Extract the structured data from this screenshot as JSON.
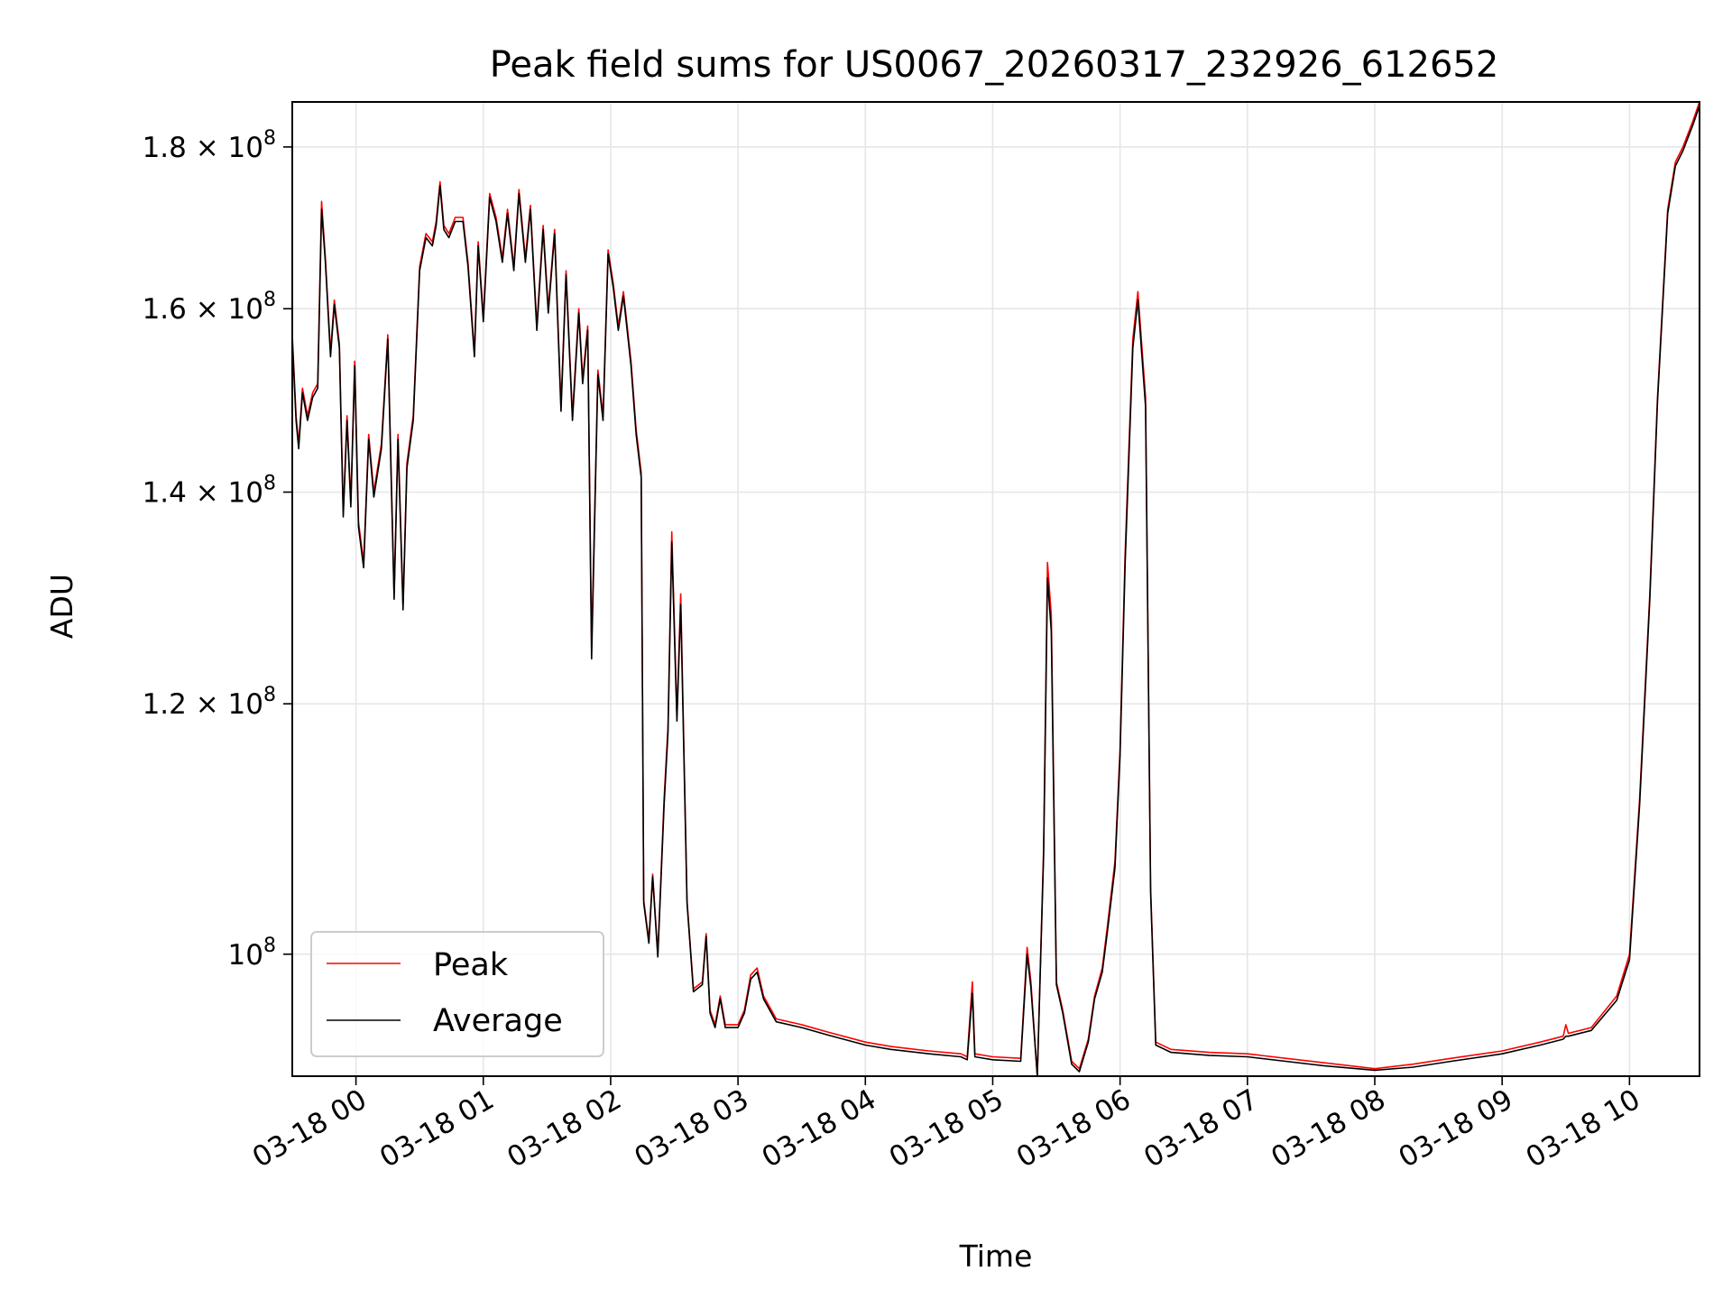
{
  "chart_data": {
    "type": "line",
    "title": "Peak field sums for US0067_20260317_232926_612652",
    "xlabel": "Time",
    "ylabel": "ADU",
    "x_unit": "hours since 2026-03-18 00:00",
    "xlim": [
      -0.5,
      10.55
    ],
    "ylim": [
      91500000,
      186000000
    ],
    "y_scale": "log",
    "grid": true,
    "legend_location": "lower-left",
    "colors": {
      "peak": "#ff0000",
      "average": "#000000",
      "grid": "#e6e6e6"
    },
    "x_ticks": [
      {
        "value": 0,
        "label": "03-18 00"
      },
      {
        "value": 1,
        "label": "03-18 01"
      },
      {
        "value": 2,
        "label": "03-18 02"
      },
      {
        "value": 3,
        "label": "03-18 03"
      },
      {
        "value": 4,
        "label": "03-18 04"
      },
      {
        "value": 5,
        "label": "03-18 05"
      },
      {
        "value": 6,
        "label": "03-18 06"
      },
      {
        "value": 7,
        "label": "03-18 07"
      },
      {
        "value": 8,
        "label": "03-18 08"
      },
      {
        "value": 9,
        "label": "03-18 09"
      },
      {
        "value": 10,
        "label": "03-18 10"
      }
    ],
    "y_ticks": [
      {
        "value": 100000000,
        "base": "10",
        "exp": "8"
      },
      {
        "value": 120000000,
        "base": "1.2 × 10",
        "exp": "8"
      },
      {
        "value": 140000000,
        "base": "1.4 × 10",
        "exp": "8"
      },
      {
        "value": 160000000,
        "base": "1.6 × 10",
        "exp": "8"
      },
      {
        "value": 180000000,
        "base": "1.8 × 10",
        "exp": "8"
      }
    ],
    "series": [
      {
        "name": "Peak",
        "key": "peak",
        "points": [
          [
            -0.5,
            157.0
          ],
          [
            -0.47,
            148.0
          ],
          [
            -0.45,
            145.0
          ],
          [
            -0.42,
            151.0
          ],
          [
            -0.38,
            148.0
          ],
          [
            -0.34,
            150.5
          ],
          [
            -0.3,
            151.5
          ],
          [
            -0.27,
            173.0
          ],
          [
            -0.24,
            166.0
          ],
          [
            -0.2,
            155.0
          ],
          [
            -0.17,
            161.0
          ],
          [
            -0.13,
            156.0
          ],
          [
            -0.1,
            138.0
          ],
          [
            -0.07,
            148.0
          ],
          [
            -0.04,
            139.0
          ],
          [
            -0.01,
            154.0
          ],
          [
            0.02,
            137.0
          ],
          [
            0.06,
            133.0
          ],
          [
            0.1,
            146.0
          ],
          [
            0.14,
            140.0
          ],
          [
            0.2,
            145.0
          ],
          [
            0.25,
            157.0
          ],
          [
            0.3,
            130.0
          ],
          [
            0.33,
            146.0
          ],
          [
            0.37,
            129.0
          ],
          [
            0.4,
            143.0
          ],
          [
            0.45,
            148.0
          ],
          [
            0.5,
            165.0
          ],
          [
            0.55,
            169.0
          ],
          [
            0.6,
            168.0
          ],
          [
            0.63,
            170.5
          ],
          [
            0.66,
            175.5
          ],
          [
            0.69,
            170.0
          ],
          [
            0.73,
            169.0
          ],
          [
            0.78,
            171.0
          ],
          [
            0.84,
            171.0
          ],
          [
            0.88,
            165.5
          ],
          [
            0.93,
            155.0
          ],
          [
            0.96,
            168.0
          ],
          [
            1.0,
            159.0
          ],
          [
            1.05,
            174.0
          ],
          [
            1.1,
            171.0
          ],
          [
            1.15,
            166.0
          ],
          [
            1.19,
            172.0
          ],
          [
            1.24,
            165.0
          ],
          [
            1.28,
            174.5
          ],
          [
            1.33,
            166.0
          ],
          [
            1.37,
            172.5
          ],
          [
            1.42,
            158.0
          ],
          [
            1.47,
            170.0
          ],
          [
            1.51,
            160.0
          ],
          [
            1.56,
            169.5
          ],
          [
            1.61,
            149.0
          ],
          [
            1.65,
            164.5
          ],
          [
            1.7,
            148.0
          ],
          [
            1.75,
            160.0
          ],
          [
            1.78,
            152.0
          ],
          [
            1.82,
            158.0
          ],
          [
            1.85,
            125.0
          ],
          [
            1.9,
            153.0
          ],
          [
            1.94,
            148.0
          ],
          [
            1.98,
            167.0
          ],
          [
            2.02,
            163.0
          ],
          [
            2.06,
            158.0
          ],
          [
            2.1,
            162.0
          ],
          [
            2.16,
            154.0
          ],
          [
            2.2,
            146.5
          ],
          [
            2.24,
            142.0
          ],
          [
            2.26,
            104.0
          ],
          [
            2.3,
            101.0
          ],
          [
            2.33,
            106.0
          ],
          [
            2.37,
            100.0
          ],
          [
            2.42,
            112.0
          ],
          [
            2.45,
            118.0
          ],
          [
            2.48,
            136.0
          ],
          [
            2.52,
            119.0
          ],
          [
            2.55,
            130.0
          ],
          [
            2.6,
            104.0
          ],
          [
            2.65,
            97.5
          ],
          [
            2.72,
            98.0
          ],
          [
            2.75,
            101.5
          ],
          [
            2.78,
            96.0
          ],
          [
            2.82,
            95.0
          ],
          [
            2.86,
            97.0
          ],
          [
            2.9,
            95.0
          ],
          [
            3.0,
            95.0
          ],
          [
            3.05,
            96.0
          ],
          [
            3.1,
            98.5
          ],
          [
            3.15,
            99.0
          ],
          [
            3.2,
            97.0
          ],
          [
            3.3,
            95.4
          ],
          [
            3.5,
            95.0
          ],
          [
            3.7,
            94.5
          ],
          [
            4.0,
            93.8
          ],
          [
            4.2,
            93.5
          ],
          [
            4.5,
            93.2
          ],
          [
            4.75,
            93.0
          ],
          [
            4.8,
            92.8
          ],
          [
            4.84,
            98.0
          ],
          [
            4.86,
            93.0
          ],
          [
            5.0,
            92.8
          ],
          [
            5.22,
            92.7
          ],
          [
            5.27,
            100.5
          ],
          [
            5.3,
            98.0
          ],
          [
            5.35,
            91.5
          ],
          [
            5.4,
            108.0
          ],
          [
            5.43,
            133.0
          ],
          [
            5.46,
            128.0
          ],
          [
            5.5,
            98.0
          ],
          [
            5.55,
            96.0
          ],
          [
            5.62,
            92.5
          ],
          [
            5.68,
            92.0
          ],
          [
            5.75,
            94.0
          ],
          [
            5.8,
            97.0
          ],
          [
            5.86,
            99.0
          ],
          [
            5.9,
            102.0
          ],
          [
            5.96,
            107.0
          ],
          [
            6.0,
            116.0
          ],
          [
            6.04,
            134.0
          ],
          [
            6.1,
            156.5
          ],
          [
            6.14,
            162.0
          ],
          [
            6.2,
            150.0
          ],
          [
            6.24,
            105.0
          ],
          [
            6.28,
            93.8
          ],
          [
            6.4,
            93.3
          ],
          [
            6.7,
            93.1
          ],
          [
            7.0,
            93.0
          ],
          [
            7.3,
            92.7
          ],
          [
            7.6,
            92.4
          ],
          [
            8.0,
            92.0
          ],
          [
            8.3,
            92.3
          ],
          [
            8.6,
            92.7
          ],
          [
            9.0,
            93.2
          ],
          [
            9.3,
            93.8
          ],
          [
            9.48,
            94.2
          ],
          [
            9.5,
            95.0
          ],
          [
            9.52,
            94.4
          ],
          [
            9.7,
            94.8
          ],
          [
            9.9,
            97.0
          ],
          [
            10.0,
            100.0
          ],
          [
            10.08,
            112.0
          ],
          [
            10.16,
            130.0
          ],
          [
            10.22,
            150.0
          ],
          [
            10.3,
            172.0
          ],
          [
            10.36,
            178.0
          ],
          [
            10.42,
            180.0
          ],
          [
            10.5,
            183.5
          ],
          [
            10.55,
            186.0
          ]
        ]
      },
      {
        "name": "Average",
        "key": "average",
        "points": [
          [
            -0.5,
            156.5
          ],
          [
            -0.47,
            147.5
          ],
          [
            -0.45,
            144.5
          ],
          [
            -0.42,
            150.5
          ],
          [
            -0.38,
            147.5
          ],
          [
            -0.34,
            150.0
          ],
          [
            -0.3,
            151.0
          ],
          [
            -0.27,
            172.0
          ],
          [
            -0.24,
            165.5
          ],
          [
            -0.2,
            154.5
          ],
          [
            -0.17,
            160.5
          ],
          [
            -0.13,
            155.5
          ],
          [
            -0.1,
            137.5
          ],
          [
            -0.07,
            147.5
          ],
          [
            -0.04,
            138.5
          ],
          [
            -0.01,
            153.5
          ],
          [
            0.02,
            136.5
          ],
          [
            0.06,
            132.5
          ],
          [
            0.1,
            145.5
          ],
          [
            0.14,
            139.5
          ],
          [
            0.2,
            144.5
          ],
          [
            0.25,
            156.5
          ],
          [
            0.3,
            129.5
          ],
          [
            0.33,
            145.5
          ],
          [
            0.37,
            128.5
          ],
          [
            0.4,
            142.5
          ],
          [
            0.45,
            147.5
          ],
          [
            0.5,
            164.5
          ],
          [
            0.55,
            168.5
          ],
          [
            0.6,
            167.5
          ],
          [
            0.63,
            170.0
          ],
          [
            0.66,
            175.0
          ],
          [
            0.69,
            169.5
          ],
          [
            0.73,
            168.5
          ],
          [
            0.78,
            170.5
          ],
          [
            0.84,
            170.5
          ],
          [
            0.88,
            165.0
          ],
          [
            0.93,
            154.5
          ],
          [
            0.96,
            167.5
          ],
          [
            1.0,
            158.5
          ],
          [
            1.05,
            173.5
          ],
          [
            1.1,
            170.5
          ],
          [
            1.15,
            165.5
          ],
          [
            1.19,
            171.5
          ],
          [
            1.24,
            164.5
          ],
          [
            1.28,
            174.0
          ],
          [
            1.33,
            165.5
          ],
          [
            1.37,
            172.0
          ],
          [
            1.42,
            157.5
          ],
          [
            1.47,
            169.5
          ],
          [
            1.51,
            159.5
          ],
          [
            1.56,
            169.0
          ],
          [
            1.61,
            148.5
          ],
          [
            1.65,
            164.0
          ],
          [
            1.7,
            147.5
          ],
          [
            1.75,
            159.5
          ],
          [
            1.78,
            151.5
          ],
          [
            1.82,
            157.5
          ],
          [
            1.85,
            124.0
          ],
          [
            1.9,
            152.5
          ],
          [
            1.94,
            147.5
          ],
          [
            1.98,
            166.5
          ],
          [
            2.02,
            162.5
          ],
          [
            2.06,
            157.5
          ],
          [
            2.1,
            161.5
          ],
          [
            2.16,
            153.5
          ],
          [
            2.2,
            146.0
          ],
          [
            2.24,
            141.5
          ],
          [
            2.26,
            103.8
          ],
          [
            2.3,
            100.8
          ],
          [
            2.33,
            105.8
          ],
          [
            2.37,
            99.8
          ],
          [
            2.42,
            111.5
          ],
          [
            2.45,
            117.5
          ],
          [
            2.48,
            135.0
          ],
          [
            2.52,
            118.5
          ],
          [
            2.55,
            129.0
          ],
          [
            2.6,
            103.8
          ],
          [
            2.65,
            97.3
          ],
          [
            2.72,
            97.8
          ],
          [
            2.75,
            101.3
          ],
          [
            2.78,
            95.8
          ],
          [
            2.82,
            94.8
          ],
          [
            2.86,
            96.8
          ],
          [
            2.9,
            94.8
          ],
          [
            3.0,
            94.8
          ],
          [
            3.05,
            95.8
          ],
          [
            3.1,
            98.2
          ],
          [
            3.15,
            98.7
          ],
          [
            3.2,
            96.8
          ],
          [
            3.3,
            95.2
          ],
          [
            3.5,
            94.8
          ],
          [
            3.7,
            94.3
          ],
          [
            4.0,
            93.6
          ],
          [
            4.2,
            93.3
          ],
          [
            4.5,
            93.0
          ],
          [
            4.75,
            92.8
          ],
          [
            4.8,
            92.6
          ],
          [
            4.84,
            97.2
          ],
          [
            4.86,
            92.8
          ],
          [
            5.0,
            92.6
          ],
          [
            5.22,
            92.5
          ],
          [
            5.27,
            100.0
          ],
          [
            5.3,
            97.6
          ],
          [
            5.35,
            91.5
          ],
          [
            5.4,
            107.5
          ],
          [
            5.43,
            131.5
          ],
          [
            5.46,
            126.5
          ],
          [
            5.5,
            97.8
          ],
          [
            5.55,
            95.8
          ],
          [
            5.62,
            92.3
          ],
          [
            5.68,
            91.8
          ],
          [
            5.75,
            93.8
          ],
          [
            5.8,
            96.8
          ],
          [
            5.86,
            98.7
          ],
          [
            5.9,
            101.6
          ],
          [
            5.96,
            106.5
          ],
          [
            6.0,
            115.5
          ],
          [
            6.04,
            133.0
          ],
          [
            6.1,
            155.5
          ],
          [
            6.14,
            161.0
          ],
          [
            6.2,
            149.0
          ],
          [
            6.24,
            104.6
          ],
          [
            6.28,
            93.6
          ],
          [
            6.4,
            93.1
          ],
          [
            6.7,
            92.9
          ],
          [
            7.0,
            92.8
          ],
          [
            7.3,
            92.5
          ],
          [
            7.6,
            92.2
          ],
          [
            8.0,
            91.9
          ],
          [
            8.3,
            92.1
          ],
          [
            8.6,
            92.5
          ],
          [
            9.0,
            93.0
          ],
          [
            9.3,
            93.6
          ],
          [
            9.48,
            94.0
          ],
          [
            9.5,
            94.2
          ],
          [
            9.52,
            94.2
          ],
          [
            9.7,
            94.6
          ],
          [
            9.9,
            96.7
          ],
          [
            10.0,
            99.6
          ],
          [
            10.08,
            111.5
          ],
          [
            10.16,
            129.5
          ],
          [
            10.22,
            149.5
          ],
          [
            10.3,
            171.5
          ],
          [
            10.36,
            177.5
          ],
          [
            10.42,
            179.5
          ],
          [
            10.5,
            183.0
          ],
          [
            10.55,
            185.5
          ]
        ]
      }
    ]
  }
}
